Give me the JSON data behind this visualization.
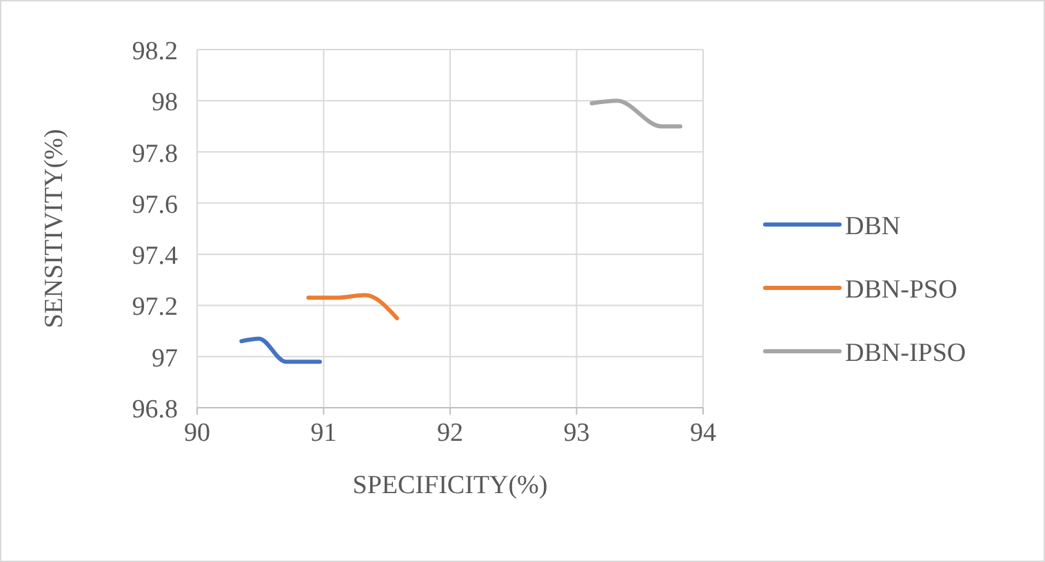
{
  "chart_data": {
    "type": "line",
    "xlabel": "SPECIFICITY(%)",
    "ylabel": "SENSITIVITY(%)",
    "xlim": [
      90,
      94
    ],
    "xticks": [
      90,
      91,
      92,
      93,
      94
    ],
    "ylim": [
      96.8,
      98.2
    ],
    "yticks": [
      96.8,
      97,
      97.2,
      97.4,
      97.6,
      97.8,
      98,
      98.2
    ],
    "grid": true,
    "legend": "right",
    "line_style": "solid",
    "series": [
      {
        "name": "DBN",
        "color": "#4472c4",
        "x": [
          90.35,
          90.49,
          90.7,
          90.87,
          90.97
        ],
        "values": [
          97.06,
          97.07,
          96.98,
          96.98,
          96.98
        ]
      },
      {
        "name": "DBN-PSO",
        "color": "#ed7d31",
        "x": [
          90.88,
          91.1,
          91.33,
          91.58
        ],
        "values": [
          97.23,
          97.23,
          97.24,
          97.15
        ]
      },
      {
        "name": "DBN-IPSO",
        "color": "#a5a5a5",
        "x": [
          93.12,
          93.32,
          93.67,
          93.82
        ],
        "values": [
          97.99,
          98.0,
          97.9,
          97.9
        ]
      }
    ]
  }
}
